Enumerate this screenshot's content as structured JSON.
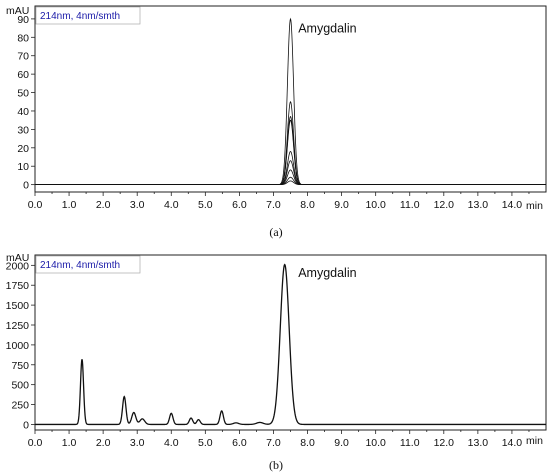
{
  "chart_data": [
    {
      "type": "line",
      "panel_label": "(a)",
      "condition_label": "214nm, 4nm/smth",
      "ylabel": "mAU",
      "xlabel": "min",
      "xlim": [
        0,
        15
      ],
      "ylim": [
        -4,
        97
      ],
      "xticks": [
        "0.0",
        "1.0",
        "2.0",
        "3.0",
        "4.0",
        "5.0",
        "6.0",
        "7.0",
        "8.0",
        "9.0",
        "10.0",
        "11.0",
        "12.0",
        "13.0",
        "14.0"
      ],
      "yticks": [
        "0",
        "10",
        "20",
        "30",
        "40",
        "50",
        "60",
        "70",
        "80",
        "90"
      ],
      "annotation": {
        "text": "Amygdalin",
        "x": 7.55,
        "y": 88
      },
      "peak_center": 7.5,
      "peak_width": 0.09,
      "overlay_peak_heights": [
        90,
        45,
        37,
        35,
        18,
        13,
        8,
        4,
        2
      ],
      "baseline": 0
    },
    {
      "type": "line",
      "panel_label": "(b)",
      "condition_label": "214nm, 4nm/smth",
      "ylabel": "mAU",
      "xlabel": "min",
      "xlim": [
        0,
        15
      ],
      "ylim": [
        -70,
        2130
      ],
      "xticks": [
        "0.0",
        "1.0",
        "2.0",
        "3.0",
        "4.0",
        "5.0",
        "6.0",
        "7.0",
        "8.0",
        "9.0",
        "10.0",
        "11.0",
        "12.0",
        "13.0",
        "14.0"
      ],
      "yticks": [
        "0",
        "250",
        "500",
        "750",
        "1000",
        "1250",
        "1500",
        "1750",
        "2000"
      ],
      "annotation": {
        "text": "Amygdalin",
        "x": 7.55,
        "y": 1980
      },
      "baseline": 0,
      "peaks": [
        {
          "rt": 1.38,
          "height": 820,
          "width": 0.045
        },
        {
          "rt": 2.62,
          "height": 350,
          "width": 0.05
        },
        {
          "rt": 2.9,
          "height": 150,
          "width": 0.06
        },
        {
          "rt": 3.15,
          "height": 70,
          "width": 0.07
        },
        {
          "rt": 4.0,
          "height": 140,
          "width": 0.05
        },
        {
          "rt": 4.58,
          "height": 80,
          "width": 0.05
        },
        {
          "rt": 4.8,
          "height": 60,
          "width": 0.05
        },
        {
          "rt": 5.48,
          "height": 170,
          "width": 0.05
        },
        {
          "rt": 5.9,
          "height": 20,
          "width": 0.08
        },
        {
          "rt": 6.6,
          "height": 25,
          "width": 0.1
        },
        {
          "rt": 7.33,
          "height": 2010,
          "width": 0.13
        }
      ]
    }
  ]
}
